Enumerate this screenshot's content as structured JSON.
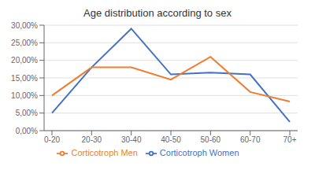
{
  "chart_data": {
    "type": "line",
    "title": "Age distribution according to sex",
    "categories": [
      "0-20",
      "20-30",
      "30-40",
      "40-50",
      "50-60",
      "60-70",
      "70+"
    ],
    "series": [
      {
        "name": "Corticotroph Women",
        "color": "#4472C4",
        "values": [
          0.05,
          0.18,
          0.29,
          0.16,
          0.165,
          0.16,
          0.025
        ]
      },
      {
        "name": "Corticotroph Men",
        "color": "#ED7D31",
        "values": [
          0.1,
          0.18,
          0.18,
          0.145,
          0.21,
          0.11,
          0.083
        ]
      }
    ],
    "ylim": [
      0.0,
      0.3
    ],
    "yticks": [
      {
        "value": 0.0,
        "label": "0,00%"
      },
      {
        "value": 0.05,
        "label": "5,00%"
      },
      {
        "value": 0.1,
        "label": "10,00%"
      },
      {
        "value": 0.15,
        "label": "15,00%"
      },
      {
        "value": 0.2,
        "label": "20,00%"
      },
      {
        "value": 0.25,
        "label": "25,00%"
      },
      {
        "value": 0.3,
        "label": "30,00%"
      }
    ],
    "grid": true,
    "legend": "bottom"
  }
}
